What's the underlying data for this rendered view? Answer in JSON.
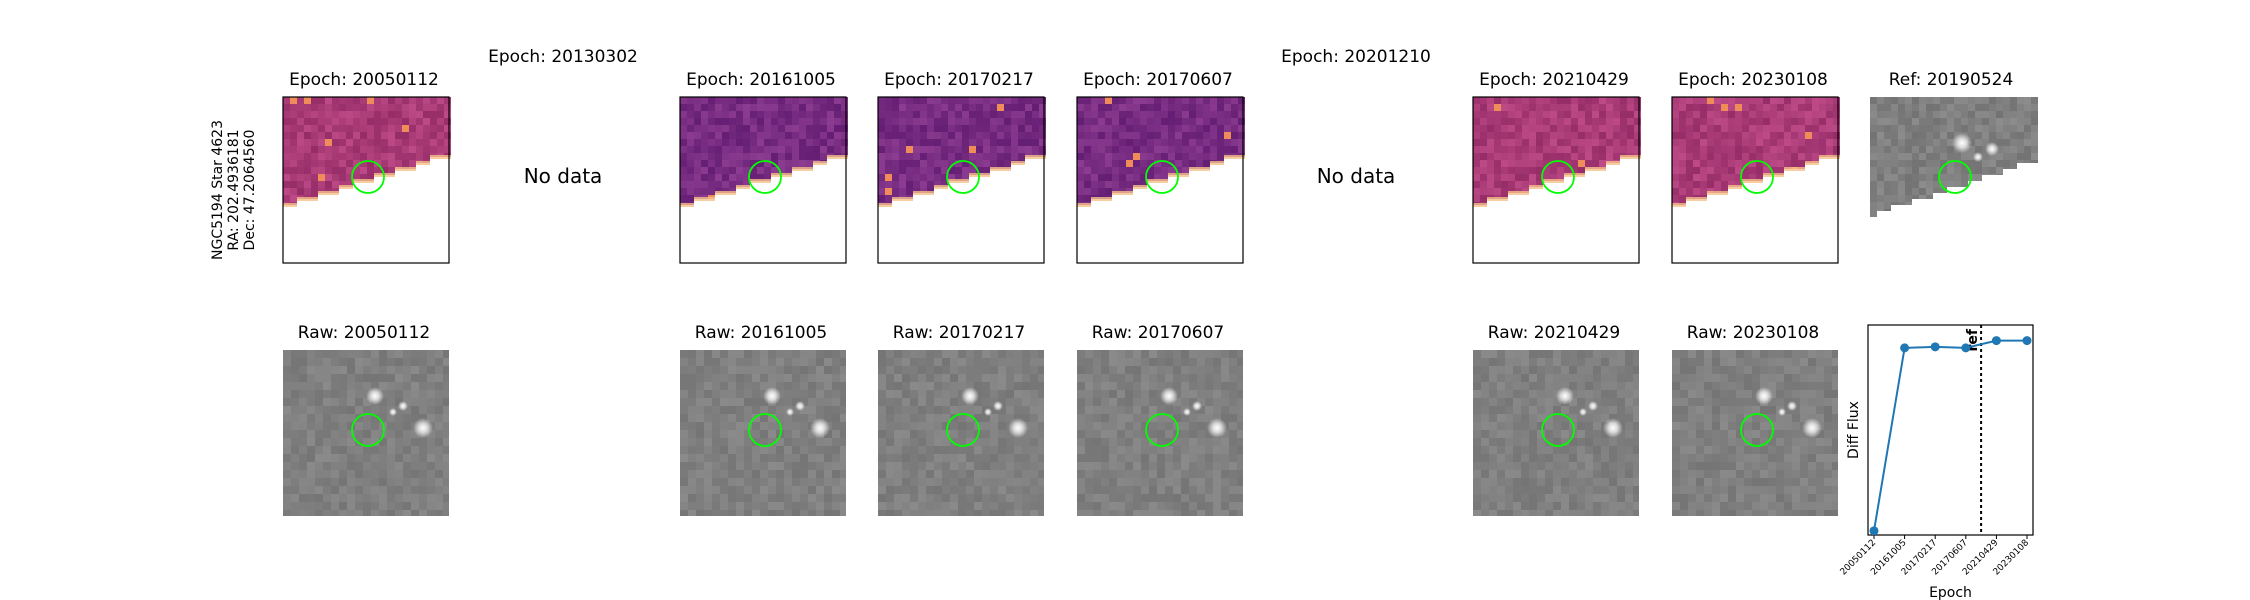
{
  "object_label": {
    "line1": "NGC5194 Star 4623",
    "line2": "RA: 202.4936181",
    "line3": "Dec: 47.2064560"
  },
  "diff_row": [
    {
      "title": "Epoch: 20050112",
      "has_data": true
    },
    {
      "title": "Epoch: 20130302",
      "has_data": false,
      "nodata": "No data"
    },
    {
      "title": "Epoch: 20161005",
      "has_data": true
    },
    {
      "title": "Epoch: 20170217",
      "has_data": true
    },
    {
      "title": "Epoch: 20170607",
      "has_data": true
    },
    {
      "title": "Epoch: 20201210",
      "has_data": false,
      "nodata": "No data"
    },
    {
      "title": "Epoch: 20210429",
      "has_data": true
    },
    {
      "title": "Epoch: 20230108",
      "has_data": true
    },
    {
      "title": "Ref: 20190524",
      "has_data": true,
      "is_ref": true
    }
  ],
  "raw_row": [
    {
      "title": "Raw: 20050112"
    },
    {
      "title": "Raw: 20161005"
    },
    {
      "title": "Raw: 20170217"
    },
    {
      "title": "Raw: 20170607"
    },
    {
      "title": "Raw: 20210429"
    },
    {
      "title": "Raw: 20230108"
    }
  ],
  "colors": {
    "marker_circle": "#00ff00",
    "line": "#1f77b4",
    "diff_base": "#8a3a8a",
    "raw_base": "#808080"
  },
  "chart_data": {
    "type": "line",
    "x": [
      "20050112",
      "20161005",
      "20170217",
      "20170607",
      "20210429",
      "20230108"
    ],
    "y": [
      0.0,
      0.88,
      0.885,
      0.88,
      0.915,
      0.915
    ],
    "xlabel": "Epoch",
    "ylabel": "Diff Flux",
    "ref_label": "ref",
    "ref_between": [
      "20170607",
      "20210429"
    ],
    "yticks_shown": false
  }
}
